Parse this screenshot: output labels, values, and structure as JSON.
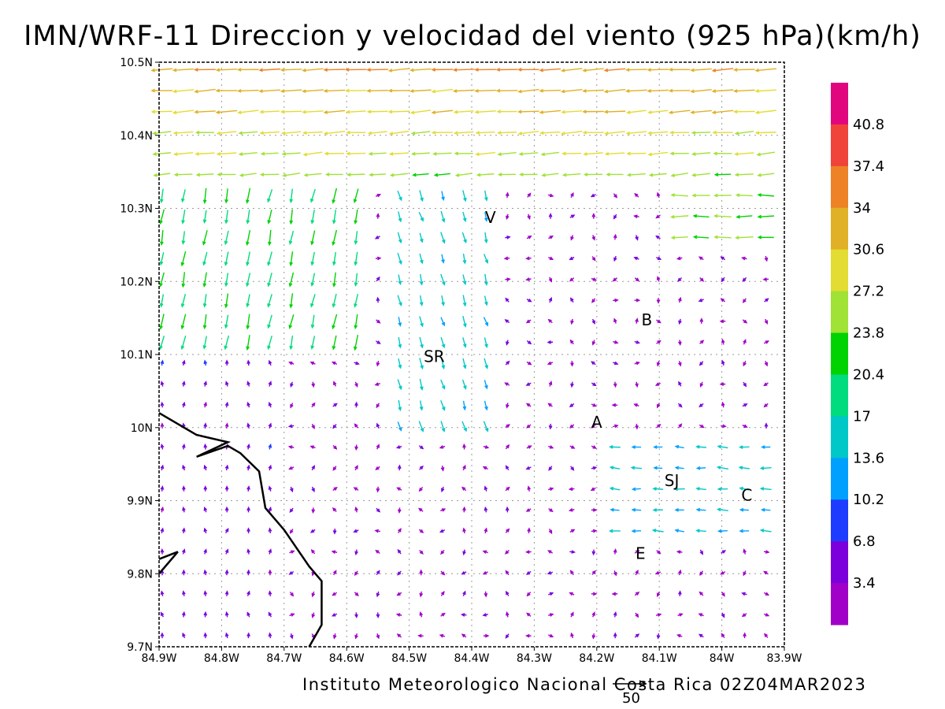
{
  "title": "IMN/WRF-11 Direccion y velocidad del viento (925 hPa)(km/h)",
  "credit": "Instituto Meteorologico Nacional Costa Rica 02Z04MAR2023",
  "reference_vector_label": "50",
  "map": {
    "lon_range": [
      -84.9,
      -83.9
    ],
    "lat_range": [
      9.7,
      10.5
    ],
    "x_ticks": [
      "84.9W",
      "84.8W",
      "84.7W",
      "84.6W",
      "84.5W",
      "84.4W",
      "84.3W",
      "84.2W",
      "84.1W",
      "84W",
      "83.9W"
    ],
    "y_ticks": [
      "9.7N",
      "9.8N",
      "9.9N",
      "10N",
      "10.1N",
      "10.2N",
      "10.3N",
      "10.4N",
      "10.5N"
    ],
    "grid": true,
    "places": [
      {
        "label": "V",
        "lon": -84.37,
        "lat": 10.28
      },
      {
        "label": "B",
        "lon": -84.12,
        "lat": 10.14
      },
      {
        "label": "SR",
        "lon": -84.46,
        "lat": 10.09
      },
      {
        "label": "A",
        "lon": -84.2,
        "lat": 10.0
      },
      {
        "label": "SJ",
        "lon": -84.08,
        "lat": 9.92
      },
      {
        "label": "C",
        "lon": -83.96,
        "lat": 9.9
      },
      {
        "label": "E",
        "lon": -84.13,
        "lat": 9.82
      }
    ],
    "coastline": [
      [
        -84.9,
        10.02
      ],
      [
        -84.84,
        9.99
      ],
      [
        -84.79,
        9.98
      ],
      [
        -84.84,
        9.96
      ],
      [
        -84.79,
        9.975
      ],
      [
        -84.77,
        9.965
      ],
      [
        -84.74,
        9.94
      ],
      [
        -84.73,
        9.89
      ],
      [
        -84.7,
        9.86
      ],
      [
        -84.66,
        9.81
      ],
      [
        -84.64,
        9.79
      ],
      [
        -84.64,
        9.73
      ],
      [
        -84.66,
        9.7
      ]
    ],
    "coastline_2": [
      [
        -84.9,
        9.82
      ],
      [
        -84.87,
        9.83
      ],
      [
        -84.9,
        9.8
      ]
    ]
  },
  "colorbar": {
    "labels": [
      "40.8",
      "37.4",
      "34",
      "30.6",
      "27.2",
      "23.8",
      "20.4",
      "17",
      "13.6",
      "10.2",
      "6.8",
      "3.4"
    ],
    "colors": [
      "#e2067e",
      "#f0433a",
      "#ee8226",
      "#e0b126",
      "#e3dc33",
      "#a0e235",
      "#01d201",
      "#01dc7e",
      "#00c8c8",
      "#00a0ff",
      "#1e3cff",
      "#7b00dc",
      "#a000c8"
    ]
  }
}
